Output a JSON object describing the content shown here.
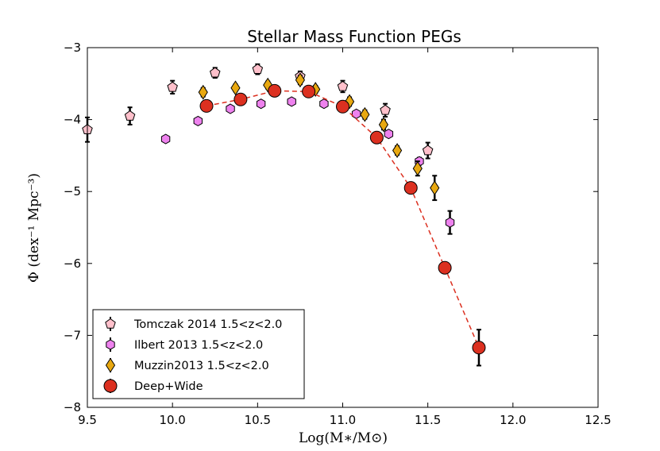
{
  "chart_data": {
    "type": "scatter",
    "title": "Stellar Mass Function PEGs",
    "xlabel": "Log(M∗/M⊙)",
    "ylabel": "Φ (dex⁻¹ Mpc⁻³)",
    "xlim": [
      9.5,
      12.5
    ],
    "ylim": [
      -8,
      -3
    ],
    "xticks": [
      9.5,
      10.0,
      10.5,
      11.0,
      11.5,
      12.0,
      12.5
    ],
    "xtick_labels": [
      "9.5",
      "10.0",
      "10.5",
      "11.0",
      "11.5",
      "12.0",
      "12.5"
    ],
    "yticks": [
      -8,
      -7,
      -6,
      -5,
      -4,
      -3
    ],
    "ytick_labels": [
      "−8",
      "−7",
      "−6",
      "−5",
      "−4",
      "−3"
    ],
    "legend_position": "lower-left",
    "series": [
      {
        "name": "Tomczak 2014 1.5<z<2.0",
        "marker": "pentagon",
        "color": "#ffc0cb",
        "points": [
          {
            "x": 9.5,
            "y": -4.14,
            "err": 0.17
          },
          {
            "x": 9.75,
            "y": -3.95,
            "err": 0.12
          },
          {
            "x": 10.0,
            "y": -3.55,
            "err": 0.09
          },
          {
            "x": 10.25,
            "y": -3.35,
            "err": 0.07
          },
          {
            "x": 10.5,
            "y": -3.3,
            "err": 0.07
          },
          {
            "x": 10.75,
            "y": -3.4,
            "err": 0.07
          },
          {
            "x": 11.0,
            "y": -3.54,
            "err": 0.08
          },
          {
            "x": 11.25,
            "y": -3.87,
            "err": 0.09
          },
          {
            "x": 11.5,
            "y": -4.43,
            "err": 0.11
          }
        ]
      },
      {
        "name": "Ilbert 2013 1.5<z<2.0",
        "marker": "hexagon",
        "color": "#ee82ee",
        "points": [
          {
            "x": 9.96,
            "y": -4.27,
            "err": 0.0
          },
          {
            "x": 10.15,
            "y": -4.02,
            "err": 0.0
          },
          {
            "x": 10.34,
            "y": -3.85,
            "err": 0.0
          },
          {
            "x": 10.52,
            "y": -3.78,
            "err": 0.0
          },
          {
            "x": 10.7,
            "y": -3.75,
            "err": 0.0
          },
          {
            "x": 10.89,
            "y": -3.78,
            "err": 0.0
          },
          {
            "x": 11.08,
            "y": -3.92,
            "err": 0.0
          },
          {
            "x": 11.27,
            "y": -4.2,
            "err": 0.03
          },
          {
            "x": 11.45,
            "y": -4.58,
            "err": 0.05
          },
          {
            "x": 11.63,
            "y": -5.43,
            "err": 0.16
          }
        ]
      },
      {
        "name": "Muzzin2013 1.5<z<2.0",
        "marker": "diamond",
        "color": "#e8a810",
        "points": [
          {
            "x": 10.18,
            "y": -3.62,
            "err": 0.06
          },
          {
            "x": 10.37,
            "y": -3.56,
            "err": 0.05
          },
          {
            "x": 10.56,
            "y": -3.52,
            "err": 0.05
          },
          {
            "x": 10.75,
            "y": -3.45,
            "err": 0.06
          },
          {
            "x": 10.84,
            "y": -3.58,
            "err": 0.05
          },
          {
            "x": 11.04,
            "y": -3.75,
            "err": 0.06
          },
          {
            "x": 11.13,
            "y": -3.93,
            "err": 0.06
          },
          {
            "x": 11.24,
            "y": -4.07,
            "err": 0.07
          },
          {
            "x": 11.32,
            "y": -4.43,
            "err": 0.06
          },
          {
            "x": 11.44,
            "y": -4.68,
            "err": 0.1
          },
          {
            "x": 11.54,
            "y": -4.95,
            "err": 0.17
          }
        ]
      },
      {
        "name": "Deep+Wide",
        "marker": "circle",
        "color": "#dc3020",
        "fit_line": true,
        "points": [
          {
            "x": 10.2,
            "y": -3.81,
            "err": 0.03
          },
          {
            "x": 10.4,
            "y": -3.72,
            "err": 0.03
          },
          {
            "x": 10.6,
            "y": -3.6,
            "err": 0.03
          },
          {
            "x": 10.8,
            "y": -3.61,
            "err": 0.03
          },
          {
            "x": 11.0,
            "y": -3.82,
            "err": 0.03
          },
          {
            "x": 11.2,
            "y": -4.25,
            "err": 0.03
          },
          {
            "x": 11.4,
            "y": -4.95,
            "err": 0.04
          },
          {
            "x": 11.6,
            "y": -6.06,
            "err": 0.05
          },
          {
            "x": 11.8,
            "y": -7.17,
            "err": 0.25
          }
        ]
      }
    ]
  }
}
